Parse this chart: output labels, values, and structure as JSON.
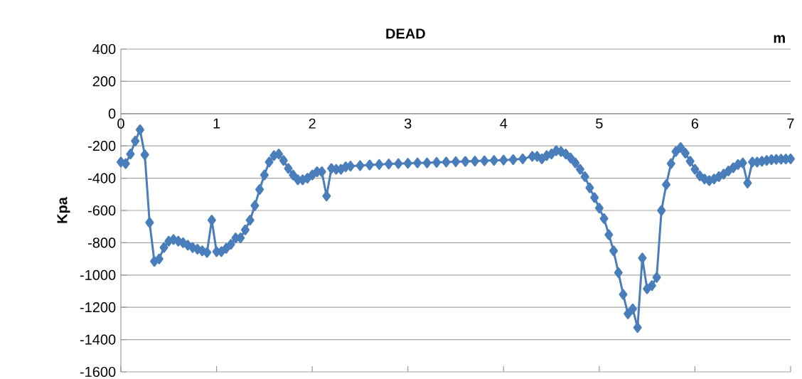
{
  "chart_data": {
    "type": "line",
    "title": "DEAD",
    "xlabel": "m",
    "ylabel": "Kpa",
    "x": [
      0,
      0.05,
      0.1,
      0.15,
      0.2,
      0.25,
      0.3,
      0.35,
      0.4,
      0.45,
      0.5,
      0.55,
      0.6,
      0.65,
      0.7,
      0.75,
      0.8,
      0.85,
      0.9,
      0.95,
      1.0,
      1.05,
      1.1,
      1.15,
      1.2,
      1.25,
      1.3,
      1.35,
      1.4,
      1.45,
      1.5,
      1.55,
      1.6,
      1.65,
      1.7,
      1.75,
      1.8,
      1.85,
      1.9,
      1.95,
      2.0,
      2.05,
      2.1,
      2.15,
      2.2,
      2.25,
      2.3,
      2.35,
      2.4,
      2.5,
      2.6,
      2.7,
      2.8,
      2.9,
      3.0,
      3.1,
      3.2,
      3.3,
      3.4,
      3.5,
      3.6,
      3.7,
      3.8,
      3.9,
      4.0,
      4.1,
      4.2,
      4.3,
      4.35,
      4.4,
      4.45,
      4.5,
      4.55,
      4.6,
      4.65,
      4.7,
      4.75,
      4.8,
      4.85,
      4.9,
      4.95,
      5.0,
      5.05,
      5.1,
      5.15,
      5.2,
      5.25,
      5.3,
      5.35,
      5.4,
      5.45,
      5.5,
      5.55,
      5.6,
      5.65,
      5.7,
      5.75,
      5.8,
      5.85,
      5.9,
      5.95,
      6.0,
      6.05,
      6.1,
      6.15,
      6.2,
      6.25,
      6.3,
      6.35,
      6.4,
      6.45,
      6.5,
      6.55,
      6.6,
      6.65,
      6.7,
      6.75,
      6.8,
      6.85,
      6.9,
      6.95,
      7.0
    ],
    "series": [
      {
        "color": "#4a7ebb",
        "values": [
          -300,
          -310,
          -250,
          -170,
          -100,
          -255,
          -675,
          -915,
          -900,
          -830,
          -790,
          -780,
          -790,
          -800,
          -815,
          -830,
          -840,
          -850,
          -860,
          -660,
          -855,
          -855,
          -835,
          -810,
          -770,
          -770,
          -720,
          -660,
          -570,
          -470,
          -380,
          -300,
          -260,
          -250,
          -290,
          -340,
          -380,
          -410,
          -410,
          -400,
          -380,
          -360,
          -360,
          -510,
          -340,
          -345,
          -345,
          -330,
          -325,
          -322,
          -318,
          -315,
          -312,
          -310,
          -308,
          -305,
          -305,
          -302,
          -300,
          -298,
          -296,
          -294,
          -292,
          -290,
          -288,
          -285,
          -280,
          -265,
          -265,
          -280,
          -260,
          -250,
          -230,
          -235,
          -250,
          -275,
          -305,
          -345,
          -390,
          -460,
          -520,
          -585,
          -650,
          -750,
          -850,
          -985,
          -1120,
          -1240,
          -1210,
          -1325,
          -895,
          -1085,
          -1065,
          -1015,
          -600,
          -440,
          -310,
          -235,
          -210,
          -245,
          -295,
          -345,
          -385,
          -405,
          -415,
          -405,
          -390,
          -375,
          -355,
          -335,
          -315,
          -305,
          -430,
          -300,
          -300,
          -295,
          -290,
          -285,
          -283,
          -282,
          -281,
          -280
        ]
      }
    ],
    "xlim": [
      0,
      7
    ],
    "ylim": [
      -1600,
      400
    ],
    "xticks": [
      0,
      1,
      2,
      3,
      4,
      5,
      6,
      7
    ],
    "yticks": [
      400,
      200,
      0,
      -200,
      -400,
      -600,
      -800,
      -1000,
      -1200,
      -1400,
      -1600
    ],
    "grid": "y",
    "marker": "diamond",
    "line_style": "solid"
  }
}
